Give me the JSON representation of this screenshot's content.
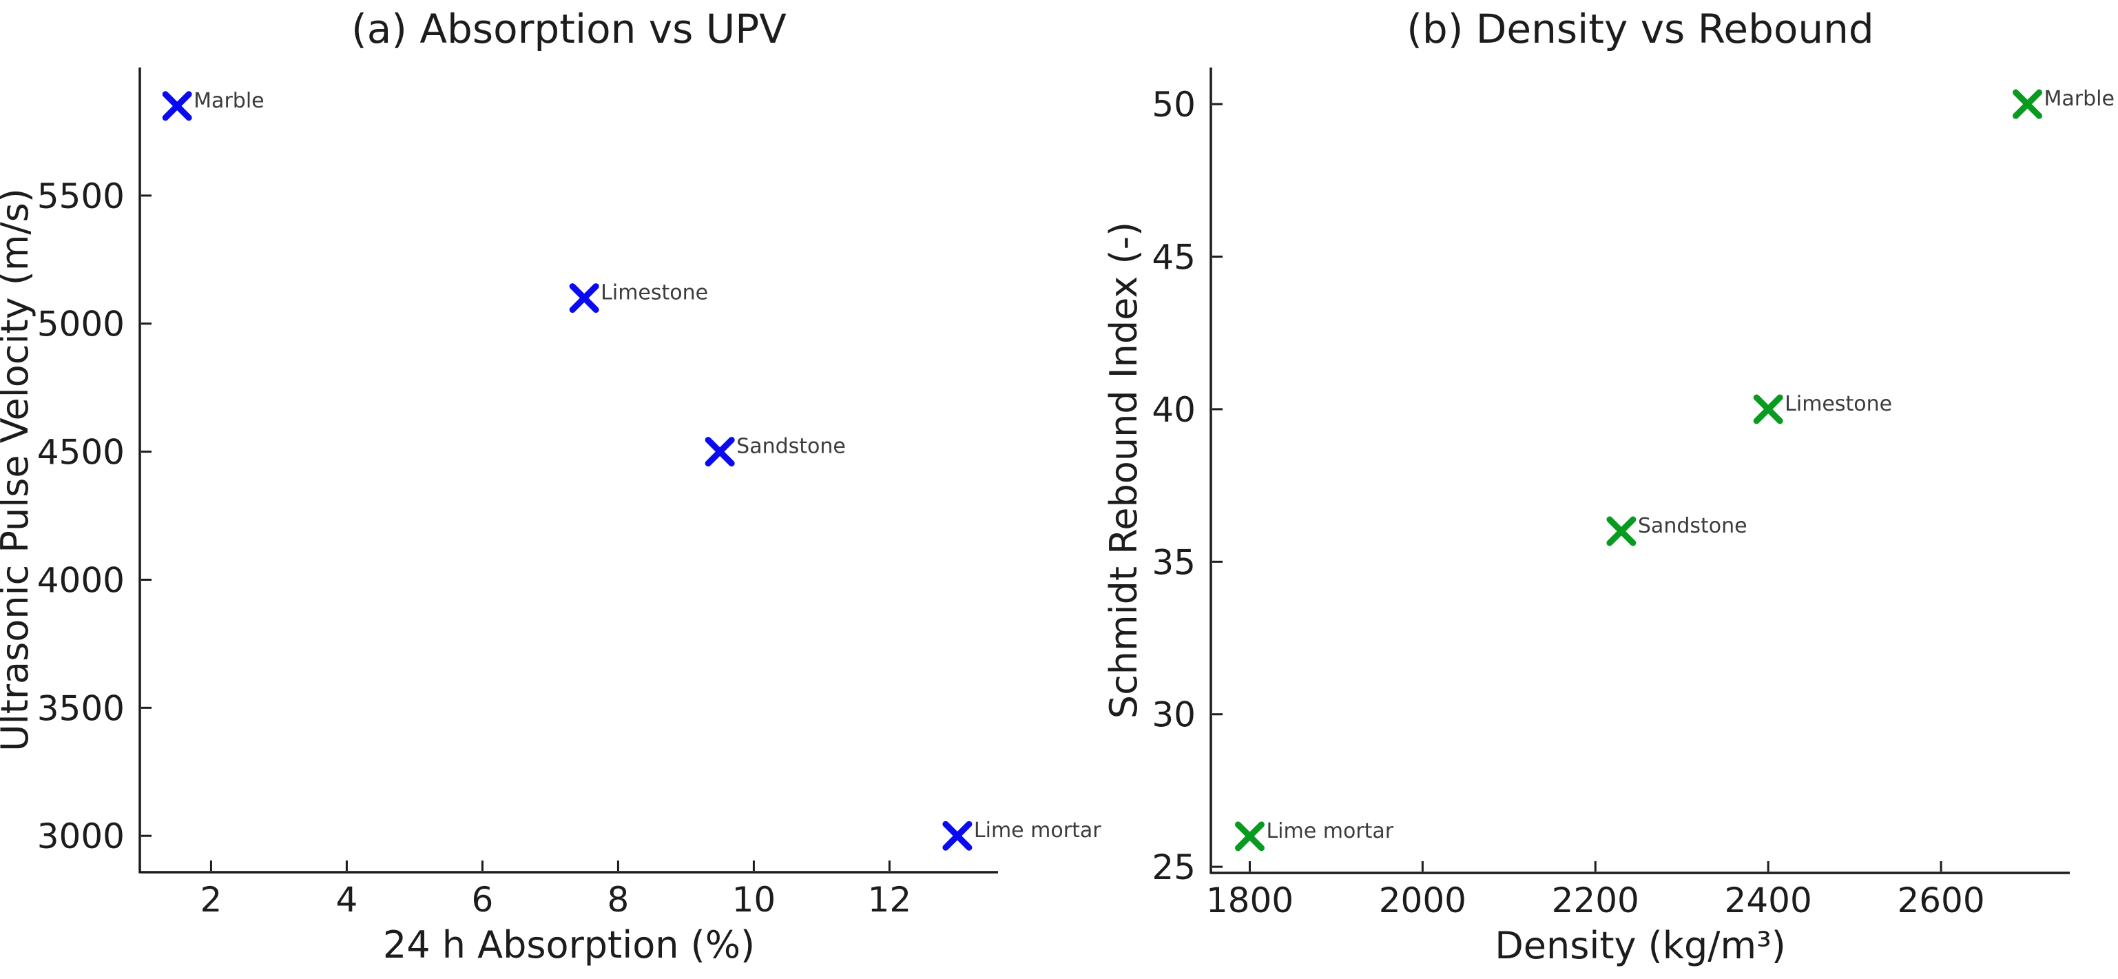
{
  "figure": {
    "background": "#ffffff",
    "text_color": "#1c1c1c",
    "annotation_color": "#3c3c3c"
  },
  "chart_data": [
    {
      "type": "scatter",
      "panel": "a",
      "title": "(a) Absorption vs UPV",
      "xlabel": "24 h Absorption (%)",
      "ylabel": "Ultrasonic Pulse Velocity (m/s)",
      "xlim": [
        0.95,
        13.6
      ],
      "ylim": [
        2858,
        6000
      ],
      "xticks": [
        2,
        4,
        6,
        8,
        10,
        12
      ],
      "yticks": [
        3000,
        3500,
        4000,
        4500,
        5000,
        5500
      ],
      "grid": false,
      "legend": false,
      "marker": "x",
      "marker_color": "#0a0af0",
      "points": [
        {
          "label": "Marble",
          "x": 1.5,
          "y": 5850
        },
        {
          "label": "Limestone",
          "x": 7.5,
          "y": 5100
        },
        {
          "label": "Sandstone",
          "x": 9.5,
          "y": 4500
        },
        {
          "label": "Lime mortar",
          "x": 13.0,
          "y": 3000
        }
      ]
    },
    {
      "type": "scatter",
      "panel": "b",
      "title": "(b) Density vs Rebound",
      "xlabel": "Density (kg/m³)",
      "ylabel": "Schmidt Rebound Index (-)",
      "xlim": [
        1755,
        2749
      ],
      "ylim": [
        24.8,
        51.2
      ],
      "xticks": [
        1800,
        2000,
        2200,
        2400,
        2600
      ],
      "yticks": [
        25,
        30,
        35,
        40,
        45,
        50
      ],
      "grid": false,
      "legend": false,
      "marker": "x",
      "marker_color": "#089b20",
      "points": [
        {
          "label": "Lime mortar",
          "x": 1800,
          "y": 26
        },
        {
          "label": "Sandstone",
          "x": 2230,
          "y": 36
        },
        {
          "label": "Limestone",
          "x": 2400,
          "y": 40
        },
        {
          "label": "Marble",
          "x": 2700,
          "y": 50
        }
      ]
    }
  ]
}
